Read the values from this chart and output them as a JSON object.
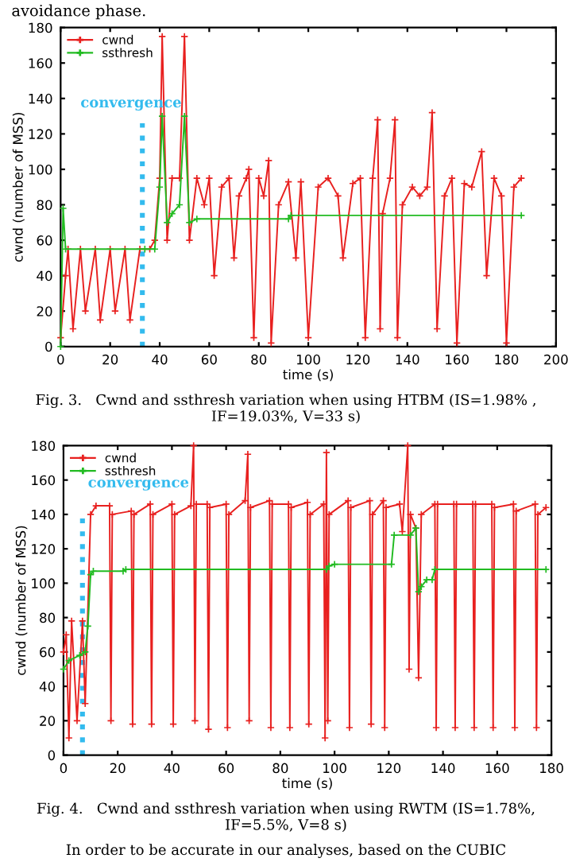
{
  "chart_data": [
    {
      "type": "line",
      "xlabel": "time (s)",
      "ylabel": "cwnd (number of MSS)",
      "xlim": [
        0,
        200
      ],
      "ylim": [
        0,
        180
      ],
      "xticks": [
        0,
        20,
        40,
        60,
        80,
        100,
        120,
        140,
        160,
        180,
        200
      ],
      "yticks": [
        0,
        20,
        40,
        60,
        80,
        100,
        120,
        140,
        160,
        180
      ],
      "grid": false,
      "legend": "top left",
      "marker": "cross",
      "line_style": "solid",
      "ref_lines": [
        {
          "axis": "x",
          "value": 33,
          "label": "convergence",
          "color": "#33bbee",
          "line_style": "dotted"
        }
      ],
      "annotations": [
        "avoidance phase.",
        "Fig. 3.   Cwnd and ssthresh variation when using HTBM (IS=1.98% , IF=19.03%, V=33 s)"
      ],
      "series": [
        {
          "name": "cwnd",
          "color": "#e8201f",
          "x": [
            0,
            2,
            3,
            5,
            8,
            10,
            14,
            16,
            20,
            22,
            26,
            28,
            32,
            36,
            38,
            40,
            41,
            43,
            45,
            48,
            50,
            52,
            55,
            58,
            60,
            62,
            65,
            68,
            70,
            72,
            75,
            76,
            78,
            80,
            82,
            84,
            85,
            88,
            92,
            95,
            97,
            100,
            104,
            108,
            112,
            114,
            118,
            121,
            123,
            126,
            128,
            129,
            130,
            133,
            135,
            136,
            138,
            142,
            145,
            148,
            150,
            152,
            155,
            158,
            160,
            163,
            166,
            170,
            172,
            175,
            178,
            180,
            183,
            186
          ],
          "values": [
            5,
            40,
            55,
            10,
            55,
            20,
            55,
            15,
            55,
            20,
            55,
            15,
            55,
            55,
            60,
            95,
            175,
            60,
            95,
            95,
            175,
            60,
            95,
            80,
            95,
            40,
            90,
            95,
            50,
            85,
            95,
            100,
            5,
            95,
            85,
            105,
            2,
            80,
            93,
            50,
            93,
            5,
            90,
            95,
            85,
            50,
            92,
            95,
            5,
            95,
            128,
            10,
            75,
            95,
            128,
            5,
            80,
            90,
            85,
            90,
            132,
            10,
            85,
            95,
            2,
            92,
            90,
            110,
            40,
            95,
            85,
            2,
            90,
            95
          ]
        },
        {
          "name": "ssthresh",
          "color": "#22bb22",
          "x": [
            0,
            1,
            2,
            34,
            38,
            40,
            41,
            43,
            45,
            48,
            50,
            52,
            55,
            92,
            93,
            186
          ],
          "values": [
            0,
            78,
            55,
            55,
            55,
            90,
            130,
            70,
            75,
            80,
            130,
            70,
            72,
            72,
            74,
            74
          ]
        }
      ]
    },
    {
      "type": "line",
      "xlabel": "time (s)",
      "ylabel": "cwnd (number of MSS)",
      "xlim": [
        0,
        180
      ],
      "ylim": [
        0,
        180
      ],
      "xticks": [
        0,
        20,
        40,
        60,
        80,
        100,
        120,
        140,
        160,
        180
      ],
      "yticks": [
        0,
        20,
        40,
        60,
        80,
        100,
        120,
        140,
        160,
        180
      ],
      "grid": false,
      "legend": "top left",
      "marker": "cross",
      "line_style": "solid",
      "ref_lines": [
        {
          "axis": "x",
          "value": 7,
          "label": "convergence",
          "color": "#33bbee",
          "line_style": "dotted"
        }
      ],
      "annotations": [
        "Fig. 4.   Cwnd and ssthresh variation when using RWTM (IS=1.78%, IF=5.5%, V=8 s)",
        "In order to be accurate in our analyses, based on the CUBIC"
      ],
      "series": [
        {
          "name": "cwnd",
          "color": "#e8201f",
          "x": [
            0,
            1,
            2,
            3,
            5,
            7,
            8,
            10,
            12,
            17,
            17.5,
            18,
            25,
            25.5,
            26,
            32,
            32.5,
            33,
            40,
            40.5,
            41,
            47,
            48,
            48.5,
            49,
            53,
            53.5,
            54,
            60,
            60.5,
            61,
            67,
            68,
            68.5,
            69,
            76,
            76.5,
            77,
            83,
            83.5,
            84,
            90,
            90.5,
            91,
            96,
            96.5,
            97,
            97.5,
            98,
            105,
            105.5,
            106,
            113,
            113.5,
            114,
            118,
            118.5,
            119,
            124,
            125,
            127,
            127.5,
            128,
            130,
            131,
            132,
            137,
            137.5,
            138,
            144,
            144.5,
            145,
            151,
            151.5,
            152,
            158,
            158.5,
            159,
            166,
            166.5,
            167,
            174,
            174.5,
            175,
            178
          ],
          "values": [
            60,
            70,
            10,
            78,
            20,
            78,
            30,
            140,
            145,
            145,
            20,
            140,
            142,
            18,
            140,
            146,
            18,
            140,
            146,
            18,
            140,
            145,
            180,
            20,
            146,
            146,
            15,
            144,
            146,
            16,
            140,
            148,
            175,
            20,
            144,
            148,
            16,
            146,
            146,
            16,
            144,
            147,
            18,
            140,
            146,
            10,
            176,
            20,
            140,
            148,
            16,
            144,
            148,
            18,
            140,
            148,
            16,
            144,
            146,
            130,
            180,
            50,
            140,
            132,
            45,
            140,
            146,
            16,
            146,
            146,
            16,
            146,
            146,
            16,
            146,
            146,
            16,
            144,
            146,
            16,
            142,
            146,
            16,
            140,
            144
          ]
        },
        {
          "name": "ssthresh",
          "color": "#22bb22",
          "x": [
            0,
            2,
            6,
            8,
            9,
            10,
            11,
            22,
            23,
            97,
            98,
            100,
            121,
            122,
            128,
            130,
            131,
            132,
            134,
            136,
            137,
            178
          ],
          "values": [
            50,
            55,
            58,
            60,
            75,
            105,
            107,
            107,
            108,
            108,
            110,
            111,
            111,
            128,
            128,
            132,
            95,
            98,
            102,
            102,
            108,
            108
          ]
        }
      ]
    }
  ]
}
